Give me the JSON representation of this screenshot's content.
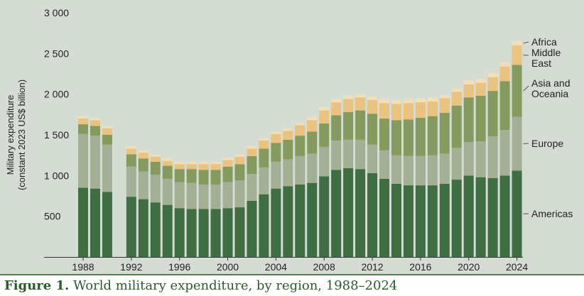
{
  "caption": {
    "label": "Figure 1.",
    "text": "World military expenditure, by region, 1988–2024"
  },
  "colors": {
    "background": "#d5dcd3",
    "Americas": "#3f6e43",
    "Europe": "#a3b095",
    "Asia and Oceania": "#859a5e",
    "Middle East": "#e9c37f",
    "Africa": "#f2dfb8",
    "axis": "#333333"
  },
  "chart_data": {
    "type": "bar",
    "stacked": true,
    "title": "World military expenditure, by region, 1988–2024",
    "ylabel": "Military expenditure\n(constant 2023 US$ billion)",
    "xlabel": "",
    "ylim": [
      0,
      3000
    ],
    "yticks": [
      500,
      1000,
      1500,
      2000,
      2500,
      3000
    ],
    "ytick_labels": [
      "500",
      "1 000",
      "1 500",
      "2 000",
      "2 500",
      "3 000"
    ],
    "grid": false,
    "legend": "right",
    "categories": [
      "1988",
      "1989",
      "1990",
      "1991",
      "1992",
      "1993",
      "1994",
      "1995",
      "1996",
      "1997",
      "1998",
      "1999",
      "2000",
      "2001",
      "2002",
      "2003",
      "2004",
      "2005",
      "2006",
      "2007",
      "2008",
      "2009",
      "2010",
      "2011",
      "2012",
      "2013",
      "2014",
      "2015",
      "2016",
      "2017",
      "2018",
      "2019",
      "2020",
      "2021",
      "2022",
      "2023",
      "2024"
    ],
    "xtick_labels": [
      "1988",
      "1992",
      "1996",
      "2000",
      "2004",
      "2008",
      "2012",
      "2016",
      "2020",
      "2024"
    ],
    "series": [
      {
        "name": "Americas",
        "values": [
          850,
          840,
          800,
          null,
          740,
          710,
          670,
          640,
          600,
          590,
          590,
          590,
          600,
          610,
          690,
          770,
          840,
          870,
          890,
          910,
          990,
          1070,
          1090,
          1080,
          1030,
          960,
          900,
          880,
          880,
          880,
          900,
          950,
          1000,
          980,
          970,
          1000,
          1060
        ]
      },
      {
        "name": "Europe",
        "values": [
          660,
          650,
          580,
          null,
          370,
          340,
          340,
          320,
          320,
          320,
          300,
          300,
          320,
          330,
          330,
          330,
          330,
          330,
          350,
          360,
          360,
          360,
          350,
          360,
          350,
          350,
          350,
          360,
          360,
          370,
          370,
          390,
          410,
          440,
          510,
          560,
          660
        ]
      },
      {
        "name": "Asia and Oceania",
        "values": [
          120,
          120,
          120,
          null,
          150,
          160,
          160,
          160,
          160,
          170,
          180,
          180,
          190,
          200,
          220,
          230,
          230,
          240,
          250,
          270,
          290,
          310,
          340,
          360,
          380,
          390,
          430,
          450,
          470,
          480,
          500,
          520,
          550,
          560,
          560,
          600,
          640
        ]
      },
      {
        "name": "Middle East",
        "values": [
          70,
          70,
          80,
          null,
          70,
          70,
          60,
          60,
          60,
          60,
          70,
          70,
          80,
          90,
          90,
          100,
          110,
          110,
          130,
          140,
          160,
          160,
          160,
          160,
          170,
          190,
          200,
          200,
          190,
          180,
          180,
          170,
          160,
          160,
          170,
          180,
          240
        ]
      },
      {
        "name": "Africa",
        "values": [
          30,
          30,
          30,
          null,
          30,
          30,
          30,
          30,
          30,
          30,
          30,
          30,
          30,
          30,
          30,
          30,
          30,
          30,
          30,
          40,
          40,
          40,
          40,
          40,
          40,
          50,
          50,
          50,
          50,
          50,
          40,
          40,
          50,
          50,
          50,
          50,
          50
        ]
      }
    ],
    "legend_labels": [
      "Africa",
      "Middle\nEast",
      "Asia and\nOceania",
      "Europe",
      "Americas"
    ]
  }
}
